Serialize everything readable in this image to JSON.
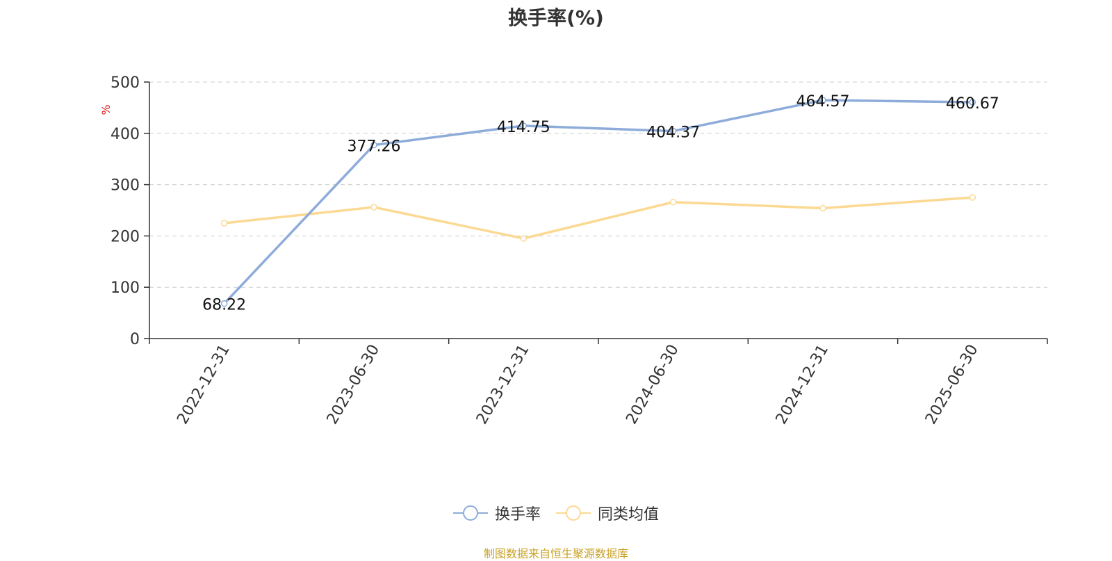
{
  "chart_data": {
    "type": "line",
    "title": "换手率(%)",
    "ylabel": "%",
    "xlabel": "",
    "categories": [
      "2022-12-31",
      "2023-06-30",
      "2023-12-31",
      "2024-06-30",
      "2024-12-31",
      "2025-06-30"
    ],
    "ylim": [
      0,
      500
    ],
    "yticks": [
      0,
      100,
      200,
      300,
      400,
      500
    ],
    "grid": true,
    "legend_position": "bottom-center",
    "series": [
      {
        "name": "换手率",
        "color": "#8eacd9",
        "values": [
          68.22,
          377.26,
          414.75,
          404.37,
          464.57,
          460.67
        ],
        "data_labels": [
          "68.22",
          "377.26",
          "414.75",
          "404.37",
          "464.57",
          "460.67"
        ]
      },
      {
        "name": "同类均值",
        "color": "#fcd993",
        "values": [
          225,
          256,
          195,
          266,
          254,
          275
        ]
      }
    ]
  },
  "source_note": "制图数据来自恒生聚源数据库"
}
